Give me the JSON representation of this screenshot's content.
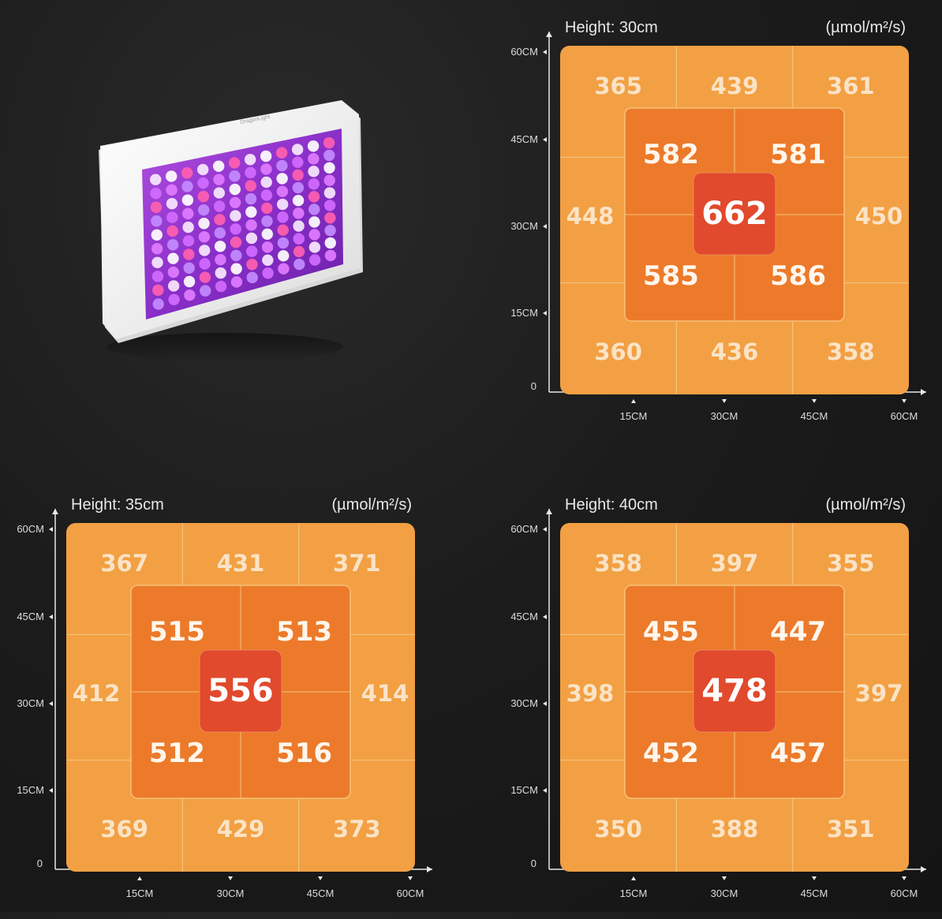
{
  "colors": {
    "background": "#1c1c1c",
    "outer_zone": "#f2a043",
    "middle_zone": "#ec7a2a",
    "center_zone": "#e14a2c",
    "grid_line": "#f6c27a",
    "axis": "#e8e8e8"
  },
  "lamp": {
    "label": "DragonLight"
  },
  "chart_data": [
    {
      "type": "heatmap",
      "title": "Height: 30cm",
      "unit": "(µmol/m²/s)",
      "y_ticks": [
        "60CM",
        "45CM",
        "30CM",
        "15CM",
        "0"
      ],
      "x_ticks": [
        "15CM",
        "30CM",
        "45CM",
        "60CM"
      ],
      "outer": {
        "top": [
          365,
          439,
          361
        ],
        "left": 448,
        "right": 450,
        "bottom": [
          360,
          436,
          358
        ]
      },
      "middle": [
        582,
        581,
        585,
        586
      ],
      "center": 662
    },
    {
      "type": "heatmap",
      "title": "Height: 35cm",
      "unit": "(µmol/m²/s)",
      "y_ticks": [
        "60CM",
        "45CM",
        "30CM",
        "15CM",
        "0"
      ],
      "x_ticks": [
        "15CM",
        "30CM",
        "45CM",
        "60CM"
      ],
      "outer": {
        "top": [
          367,
          431,
          371
        ],
        "left": 412,
        "right": 414,
        "bottom": [
          369,
          429,
          373
        ]
      },
      "middle": [
        515,
        513,
        512,
        516
      ],
      "center": 556
    },
    {
      "type": "heatmap",
      "title": "Height: 40cm",
      "unit": "(µmol/m²/s)",
      "y_ticks": [
        "60CM",
        "45CM",
        "30CM",
        "15CM",
        "0"
      ],
      "x_ticks": [
        "15CM",
        "30CM",
        "45CM",
        "60CM"
      ],
      "outer": {
        "top": [
          358,
          397,
          355
        ],
        "left": 398,
        "right": 397,
        "bottom": [
          350,
          388,
          351
        ]
      },
      "middle": [
        455,
        447,
        452,
        457
      ],
      "center": 478
    }
  ]
}
